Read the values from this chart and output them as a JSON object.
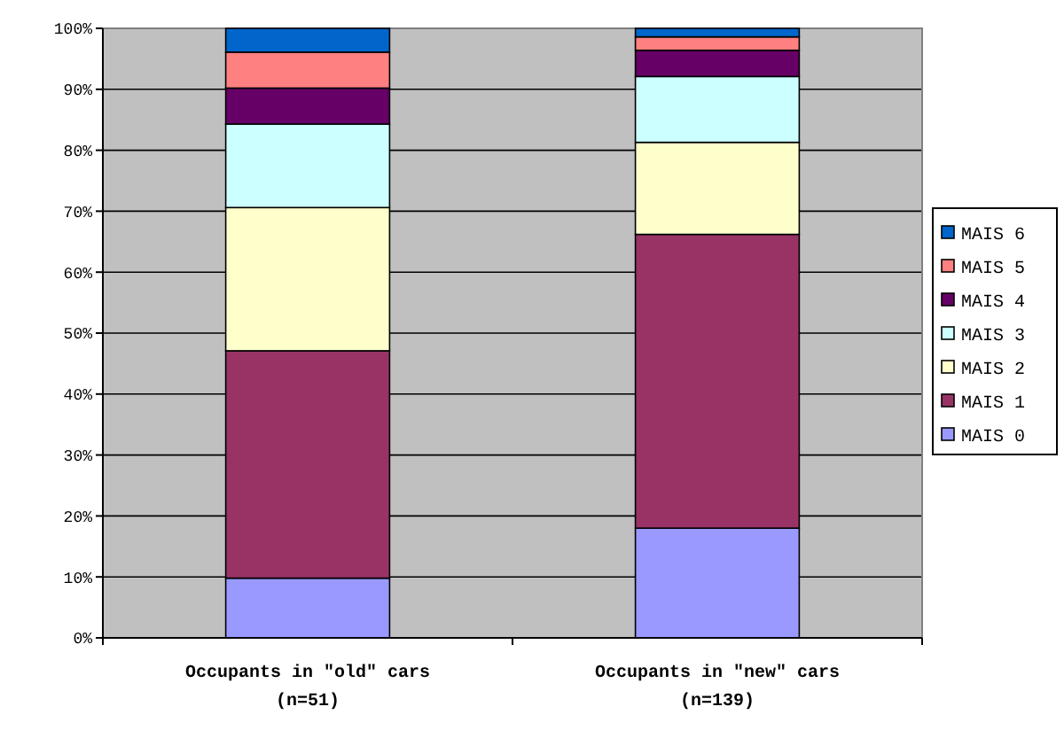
{
  "chart_data": {
    "type": "bar",
    "stacked": true,
    "categories": [
      "Occupants in \"old\" cars\n(n=51)",
      "Occupants in \"new\" cars\n(n=139)"
    ],
    "series": [
      {
        "name": "MAIS 0",
        "color": "#9999ff",
        "values": [
          9.8,
          18.0
        ]
      },
      {
        "name": "MAIS 1",
        "color": "#993366",
        "values": [
          37.3,
          48.2
        ]
      },
      {
        "name": "MAIS 2",
        "color": "#ffffcc",
        "values": [
          23.5,
          15.1
        ]
      },
      {
        "name": "MAIS 3",
        "color": "#ccffff",
        "values": [
          13.7,
          10.8
        ]
      },
      {
        "name": "MAIS 4",
        "color": "#660066",
        "values": [
          5.9,
          4.3
        ]
      },
      {
        "name": "MAIS 5",
        "color": "#ff8080",
        "values": [
          5.9,
          2.2
        ]
      },
      {
        "name": "MAIS 6",
        "color": "#0066cc",
        "values": [
          3.9,
          1.4
        ]
      }
    ],
    "ylim": [
      0,
      100
    ],
    "yticks": [
      {
        "value": 0,
        "label": "0%"
      },
      {
        "value": 10,
        "label": "10%"
      },
      {
        "value": 20,
        "label": "20%"
      },
      {
        "value": 30,
        "label": "30%"
      },
      {
        "value": 40,
        "label": "40%"
      },
      {
        "value": 50,
        "label": "50%"
      },
      {
        "value": 60,
        "label": "60%"
      },
      {
        "value": 70,
        "label": "70%"
      },
      {
        "value": 80,
        "label": "80%"
      },
      {
        "value": 90,
        "label": "90%"
      },
      {
        "value": 100,
        "label": "100%"
      }
    ],
    "grid": "y",
    "legend": "right"
  }
}
